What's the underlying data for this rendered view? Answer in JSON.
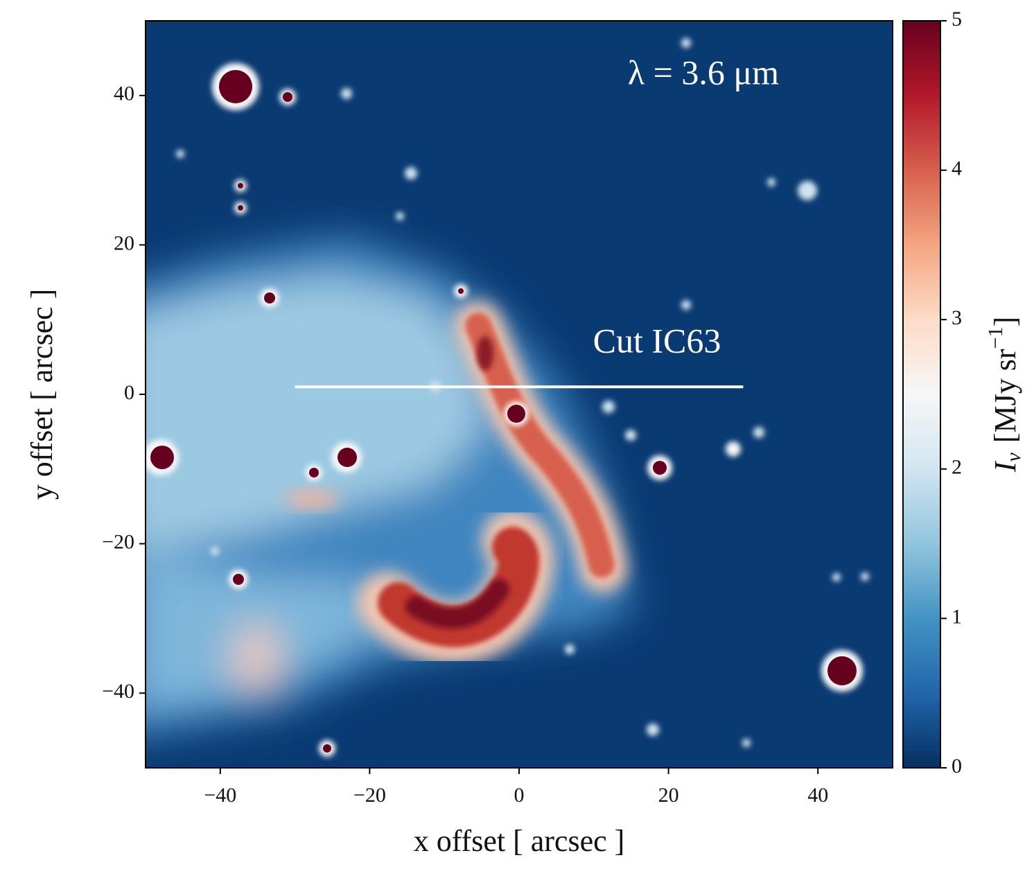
{
  "chart_data": {
    "type": "image",
    "annotations": [
      "λ = 3.6 μm",
      "Cut IC63"
    ],
    "xlabel": "x offset [ arcsec ]",
    "ylabel": "y offset [ arcsec ]",
    "xlim": [
      -50,
      50
    ],
    "ylim": [
      -50,
      50
    ],
    "xticks": [
      {
        "value": -40,
        "label": "−40"
      },
      {
        "value": -20,
        "label": "−20"
      },
      0,
      20,
      40
    ],
    "yticks": [
      {
        "value": -40,
        "label": "−40"
      },
      {
        "value": -20,
        "label": "−20"
      },
      0,
      20,
      40
    ],
    "cut": {
      "x": [
        -30,
        30
      ],
      "y": [
        1,
        1
      ],
      "color": "#ffffff"
    },
    "colorbar": {
      "label": {
        "symbol": "I",
        "subscript": "ν",
        "unit": "[MJy sr",
        "exponent": "−1",
        "close": "]"
      },
      "lim": [
        0,
        5
      ],
      "ticks": [
        0,
        1,
        2,
        3,
        4,
        5
      ],
      "colors": [
        "#053061",
        "#2166ac",
        "#4393c3",
        "#92c5de",
        "#d1e5f0",
        "#f7f7f7",
        "#fddbc7",
        "#f4a582",
        "#d6604d",
        "#b2182b",
        "#67001f"
      ]
    }
  }
}
